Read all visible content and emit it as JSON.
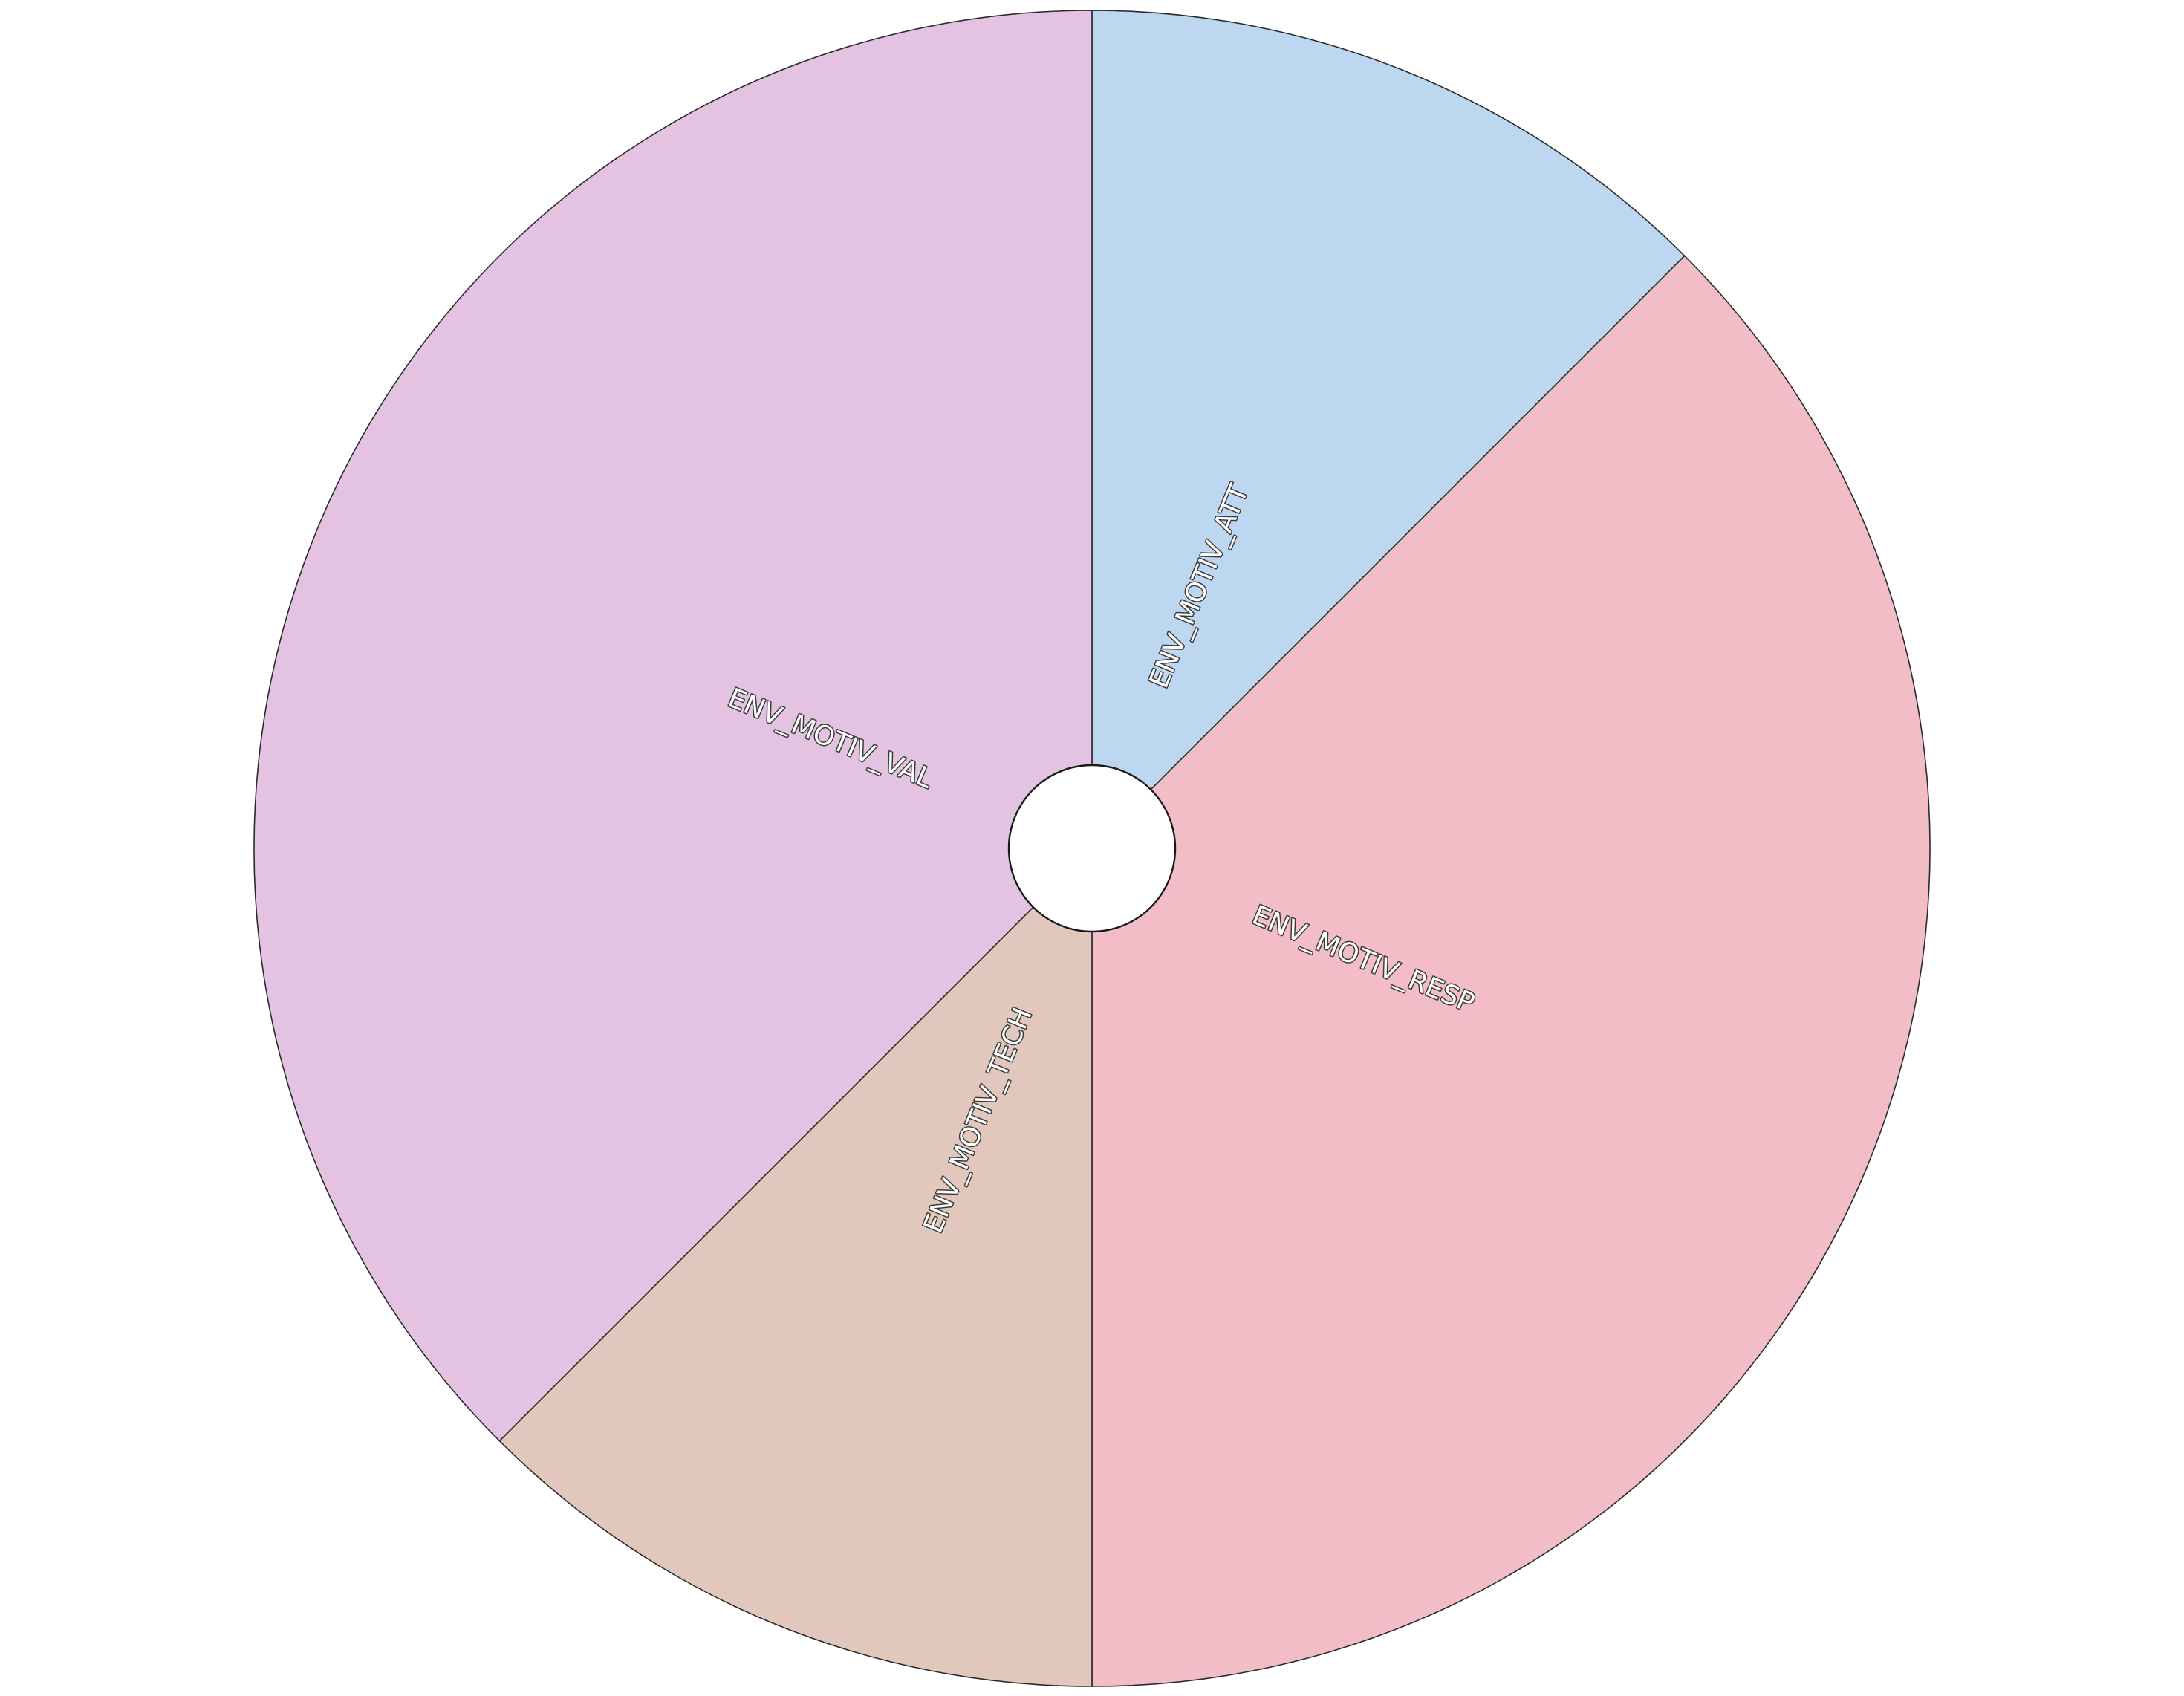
{
  "chart_data": {
    "type": "pie",
    "title": "",
    "donut_hole": true,
    "start": "top",
    "direction": "clockwise",
    "legend": "none",
    "slices": [
      {
        "label": "ENV_MOTIV_ATT",
        "value": 12.5,
        "color": "#bcd7ef"
      },
      {
        "label": "ENV_MOTIV_RESP",
        "value": 37.5,
        "color": "#f3bdc8"
      },
      {
        "label": "ENV_MOTIV_TECH",
        "value": 12.5,
        "color": "#e2c8bc"
      },
      {
        "label": "ENV_MOTIV_VAL",
        "value": 37.5,
        "color": "#e3c2e2"
      }
    ]
  }
}
